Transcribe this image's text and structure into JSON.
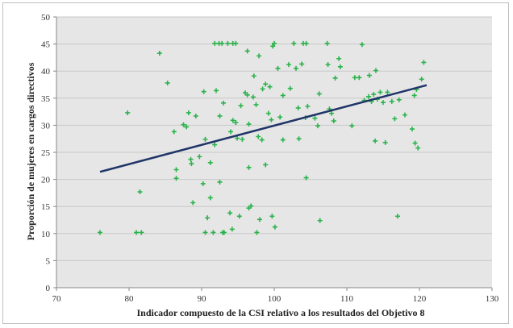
{
  "chart_data": {
    "type": "scatter",
    "xlabel": "Indicador compuesto de la CSI relativo a los resultados del Objetivo 8",
    "ylabel": "Proporción de mujeres en cargos directivos",
    "xlim": [
      70,
      130
    ],
    "ylim": [
      0,
      50
    ],
    "xticks": [
      70,
      80,
      90,
      100,
      110,
      120,
      130
    ],
    "yticks": [
      0,
      5,
      10,
      15,
      20,
      25,
      30,
      35,
      40,
      45,
      50
    ],
    "grid": "horizontal",
    "colors": {
      "points": "#2ab34a",
      "trend": "#1f3468",
      "grid": "#c8c8c8",
      "plot_bg": "#e6e6e6"
    },
    "trendline": {
      "x": [
        76,
        121
      ],
      "y": [
        21.4,
        37.4
      ]
    },
    "points": [
      [
        76,
        10.2
      ],
      [
        79.8,
        32.3
      ],
      [
        81,
        10.2
      ],
      [
        81.5,
        17.7
      ],
      [
        81.7,
        10.2
      ],
      [
        84.2,
        43.3
      ],
      [
        85.3,
        37.8
      ],
      [
        86.2,
        28.8
      ],
      [
        86.5,
        21.8
      ],
      [
        86.5,
        20.2
      ],
      [
        87.5,
        30.1
      ],
      [
        87.9,
        29.7
      ],
      [
        88.2,
        32.3
      ],
      [
        88.5,
        23.7
      ],
      [
        88.6,
        22.9
      ],
      [
        88.8,
        15.7
      ],
      [
        89.2,
        31.7
      ],
      [
        89.7,
        24.2
      ],
      [
        90.2,
        19.2
      ],
      [
        90.5,
        27.4
      ],
      [
        90.3,
        36.2
      ],
      [
        90.5,
        10.2
      ],
      [
        90.8,
        12.9
      ],
      [
        91.2,
        16.6
      ],
      [
        91.6,
        10.2
      ],
      [
        91.2,
        23.1
      ],
      [
        91.8,
        26.4
      ],
      [
        92,
        36.4
      ],
      [
        92.5,
        31.7
      ],
      [
        91.8,
        45.1
      ],
      [
        92.4,
        45.1
      ],
      [
        92.8,
        45.1
      ],
      [
        92.5,
        19.5
      ],
      [
        93,
        34.1
      ],
      [
        92.9,
        10.2
      ],
      [
        93.1,
        10.2
      ],
      [
        94,
        28.8
      ],
      [
        93.6,
        45.1
      ],
      [
        94.3,
        45.1
      ],
      [
        94.7,
        45.1
      ],
      [
        94.3,
        30.9
      ],
      [
        94.7,
        30.5
      ],
      [
        94.9,
        27.6
      ],
      [
        93.9,
        13.8
      ],
      [
        94.2,
        10.8
      ],
      [
        95.2,
        13.2
      ],
      [
        95.4,
        33.6
      ],
      [
        95.6,
        27.4
      ],
      [
        96,
        36
      ],
      [
        96.3,
        43.7
      ],
      [
        96.5,
        30.2
      ],
      [
        96.3,
        35.6
      ],
      [
        96.5,
        22.2
      ],
      [
        96.8,
        15.1
      ],
      [
        96.5,
        14.7
      ],
      [
        97.1,
        35.2
      ],
      [
        97.5,
        33.8
      ],
      [
        97.2,
        39.1
      ],
      [
        97.8,
        27.9
      ],
      [
        97.6,
        10.2
      ],
      [
        98,
        12.6
      ],
      [
        97.9,
        42.8
      ],
      [
        98.3,
        27.3
      ],
      [
        98.4,
        36.7
      ],
      [
        98.8,
        37.6
      ],
      [
        98.8,
        22.7
      ],
      [
        99.2,
        32.2
      ],
      [
        99.6,
        31
      ],
      [
        99.4,
        37.1
      ],
      [
        99.8,
        44.6
      ],
      [
        100,
        45.1
      ],
      [
        99.7,
        13.2
      ],
      [
        100.1,
        11.2
      ],
      [
        100.5,
        40.5
      ],
      [
        100.8,
        31.5
      ],
      [
        101.2,
        27.3
      ],
      [
        101.2,
        35.5
      ],
      [
        102,
        41.2
      ],
      [
        102.2,
        36.8
      ],
      [
        102.7,
        45.1
      ],
      [
        103,
        40.5
      ],
      [
        103.3,
        33.2
      ],
      [
        103.4,
        27.5
      ],
      [
        103.8,
        41.3
      ],
      [
        104,
        45.1
      ],
      [
        104.4,
        45.1
      ],
      [
        104.3,
        31.4
      ],
      [
        104.4,
        20.3
      ],
      [
        104.6,
        33.5
      ],
      [
        105.6,
        31.3
      ],
      [
        106,
        29.9
      ],
      [
        106.2,
        35.8
      ],
      [
        106.3,
        12.4
      ],
      [
        107.3,
        45.1
      ],
      [
        107.4,
        41.2
      ],
      [
        107.6,
        33
      ],
      [
        107.9,
        32.2
      ],
      [
        108.2,
        30.8
      ],
      [
        108.4,
        38.7
      ],
      [
        108.9,
        42.3
      ],
      [
        109.1,
        40.8
      ],
      [
        110.7,
        29.9
      ],
      [
        111.1,
        38.8
      ],
      [
        111.7,
        38.8
      ],
      [
        112.1,
        44.9
      ],
      [
        112.4,
        34.6
      ],
      [
        113,
        35.3
      ],
      [
        113.1,
        39.2
      ],
      [
        113.4,
        34.4
      ],
      [
        113.7,
        35.7
      ],
      [
        113.9,
        27.1
      ],
      [
        114,
        40.1
      ],
      [
        114.2,
        34.8
      ],
      [
        114.6,
        36.1
      ],
      [
        115,
        34.2
      ],
      [
        115.3,
        26.8
      ],
      [
        115.6,
        36.1
      ],
      [
        116.2,
        34.4
      ],
      [
        116.6,
        31.2
      ],
      [
        117,
        13.2
      ],
      [
        117.2,
        34.7
      ],
      [
        118,
        31.9
      ],
      [
        119,
        29.3
      ],
      [
        119.3,
        35.5
      ],
      [
        119.4,
        26.7
      ],
      [
        119.8,
        25.8
      ],
      [
        120.3,
        38.5
      ],
      [
        120.6,
        41.6
      ],
      [
        119.6,
        36.6
      ]
    ]
  }
}
